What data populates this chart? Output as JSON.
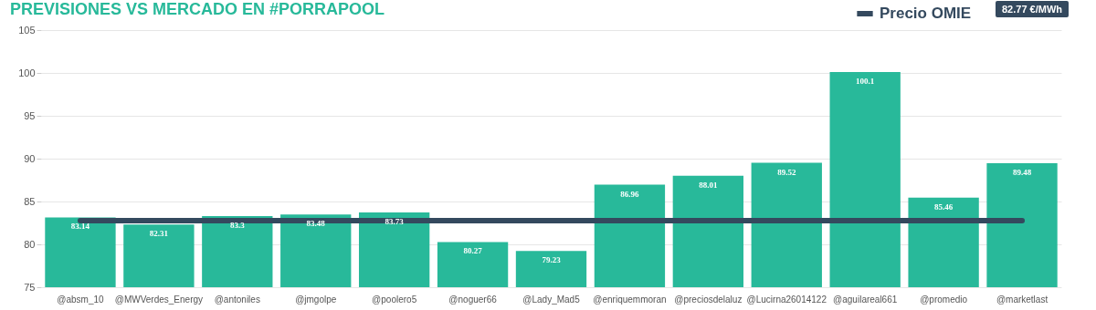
{
  "chart_data": {
    "type": "bar",
    "title": "PREVISIONES VS MERCADO EN #PORRAPOOL",
    "categories": [
      "@absm_10",
      "@MWVerdes_Energy",
      "@antoniles",
      "@jmgolpe",
      "@poolero5",
      "@noguer66",
      "@Lady_Mad5",
      "@enriquemmoran",
      "@preciosdelaluz",
      "@Lucirna26014122",
      "@aguilareal661",
      "@promedio",
      "@marketlast"
    ],
    "series": [
      {
        "color": "#28b99a",
        "values": [
          83.14,
          82.31,
          83.3,
          83.48,
          83.73,
          80.27,
          79.23,
          86.96,
          88.01,
          89.52,
          100.1,
          85.46,
          89.48
        ],
        "value_labels": [
          "83.14",
          "82.31",
          "83.3",
          "83.48",
          "83.73",
          "80.27",
          "79.23",
          "86.96",
          "88.01",
          "89.52",
          "100.1",
          "85.46",
          "89.48"
        ]
      },
      {
        "type": "line",
        "name": "Precio OMIE",
        "color": "#34495e",
        "values": [
          82.77,
          82.77,
          82.77,
          82.77,
          82.77,
          82.77,
          82.77,
          82.77,
          82.77,
          82.77,
          82.77,
          82.77,
          82.77
        ]
      }
    ],
    "ylim": [
      75,
      105
    ],
    "yticks": [
      75,
      80,
      85,
      90,
      95,
      100,
      105
    ],
    "grid": "y",
    "legend": "top right",
    "annotations": [
      "82.77 €/MWh"
    ]
  }
}
